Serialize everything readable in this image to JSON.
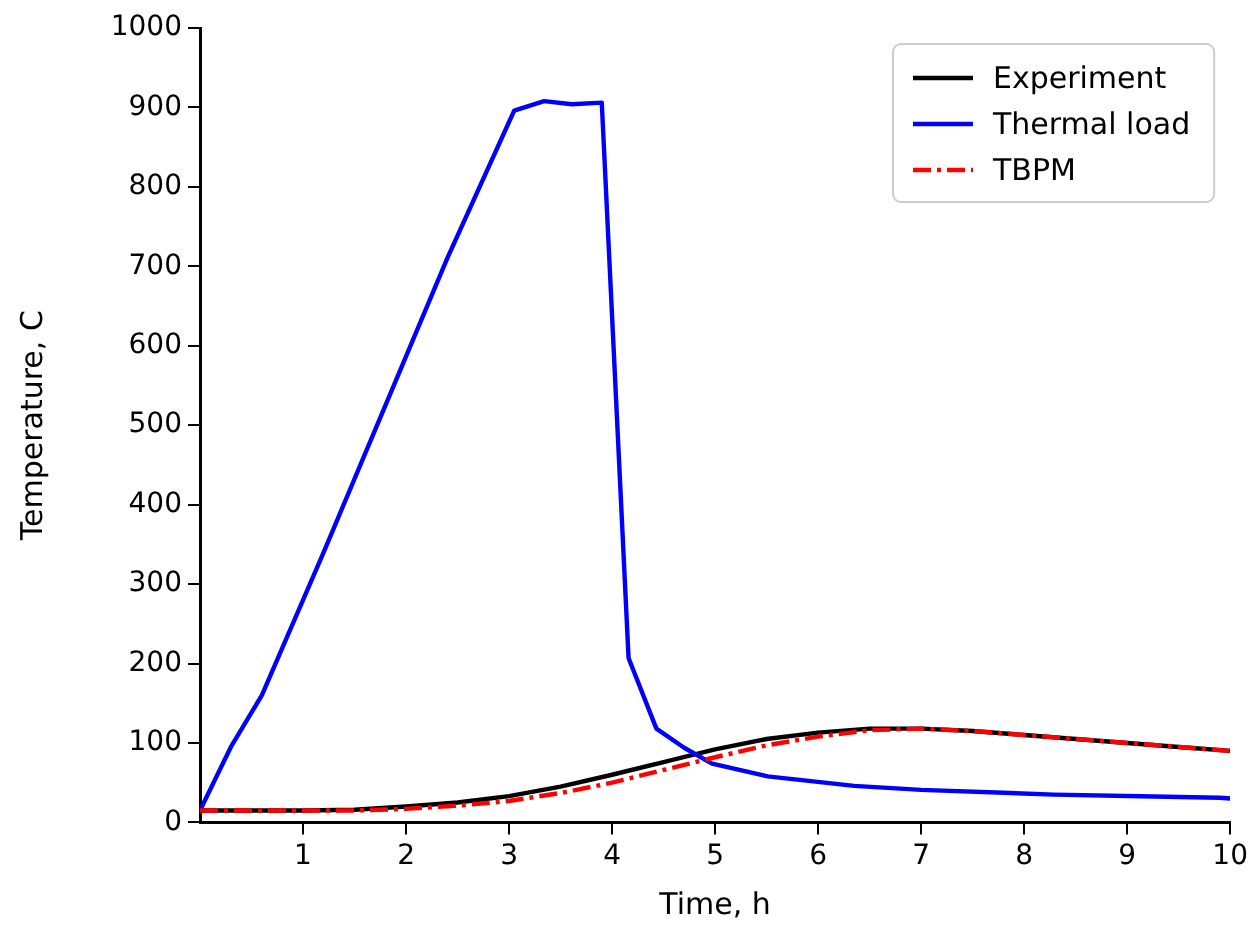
{
  "chart_data": {
    "type": "line",
    "xlabel": "Time, h",
    "ylabel": "Temperature, C",
    "xlim": [
      0,
      10
    ],
    "xticks": [
      1,
      2,
      3,
      4,
      5,
      6,
      7,
      8,
      9,
      10
    ],
    "ylim": [
      0,
      1000
    ],
    "yticks": [
      0,
      100,
      200,
      300,
      400,
      500,
      600,
      700,
      800,
      900,
      1000
    ],
    "grid": false,
    "legend": "top right",
    "marker": "none",
    "series": [
      {
        "name": "Experiment",
        "color": "#000000",
        "line_style": "solid",
        "x": [
          0,
          0.5,
          1,
          1.5,
          2,
          2.5,
          3,
          3.5,
          4,
          4.5,
          5,
          5.5,
          6,
          6.5,
          7,
          7.5,
          8,
          8.5,
          9,
          9.5,
          10
        ],
        "values": [
          15,
          15,
          15,
          16,
          20,
          25,
          33,
          45,
          60,
          76,
          92,
          105,
          113,
          118,
          118,
          115,
          110,
          105,
          100,
          95,
          90
        ]
      },
      {
        "name": "Thermal load",
        "color": "#0000ff",
        "line_style": "solid",
        "x": [
          0,
          0.3,
          0.6,
          1.2,
          1.8,
          2.4,
          3.05,
          3.34,
          3.61,
          3.9,
          4.16,
          4.43,
          4.7,
          4.97,
          5.51,
          6.35,
          7.0,
          8.29,
          9.13,
          9.9,
          10
        ],
        "values": [
          15,
          95,
          160,
          340,
          525,
          710,
          896,
          908,
          904,
          906,
          207,
          118,
          94,
          74,
          58,
          46,
          41,
          35,
          33,
          31,
          30
        ]
      },
      {
        "name": "TBPM",
        "color": "#ff0000",
        "line_style": "dashed",
        "x": [
          0,
          0.5,
          1,
          1.5,
          2,
          2.5,
          3,
          3.5,
          4,
          4.5,
          5,
          5.5,
          6,
          6.5,
          7,
          7.5,
          8,
          8.5,
          9,
          9.5,
          10
        ],
        "values": [
          15,
          15,
          15,
          15,
          17,
          21,
          27,
          37,
          50,
          66,
          82,
          97,
          108,
          116,
          118,
          115,
          110,
          105,
          100,
          95,
          90
        ]
      }
    ]
  }
}
